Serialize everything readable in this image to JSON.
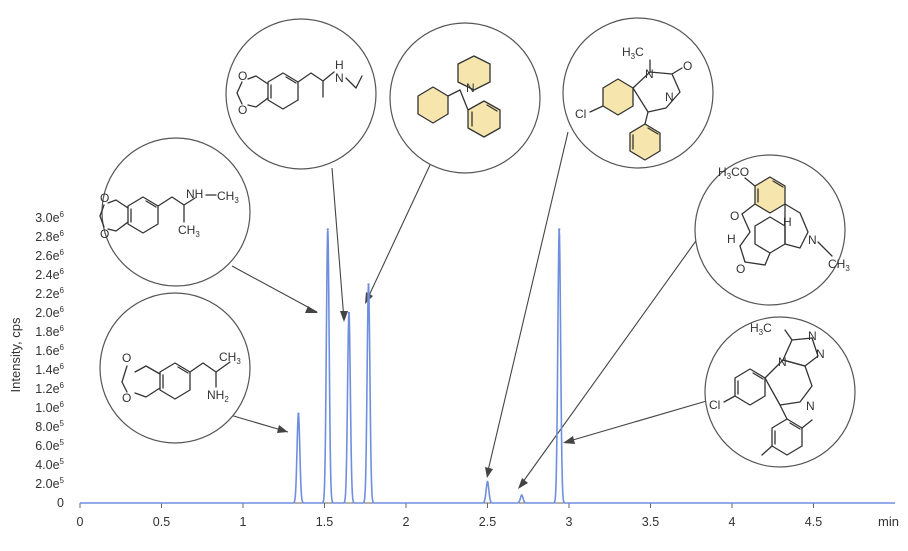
{
  "chart_data": {
    "type": "line",
    "title": "",
    "xlabel": "",
    "x_unit_label": "min",
    "ylabel": "Intensity, cps",
    "xlim": [
      0,
      5.0
    ],
    "ylim": [
      0,
      3000000
    ],
    "grid": false,
    "x_ticks": [
      "0",
      "0.5",
      "1",
      "1.5",
      "2",
      "2.5",
      "3",
      "3.5",
      "4",
      "4.5"
    ],
    "y_ticks": [
      {
        "value": 0,
        "mantissa": "0",
        "exp": ""
      },
      {
        "value": 200000,
        "mantissa": "2.0e",
        "exp": "5"
      },
      {
        "value": 400000,
        "mantissa": "4.0e",
        "exp": "5"
      },
      {
        "value": 600000,
        "mantissa": "6.0e",
        "exp": "5"
      },
      {
        "value": 800000,
        "mantissa": "8.0e",
        "exp": "5"
      },
      {
        "value": 1000000,
        "mantissa": "1.0e",
        "exp": "6"
      },
      {
        "value": 1200000,
        "mantissa": "1.2e",
        "exp": "6"
      },
      {
        "value": 1400000,
        "mantissa": "1.4e",
        "exp": "6"
      },
      {
        "value": 1600000,
        "mantissa": "1.6e",
        "exp": "6"
      },
      {
        "value": 1800000,
        "mantissa": "1.8e",
        "exp": "6"
      },
      {
        "value": 2000000,
        "mantissa": "2.0e",
        "exp": "6"
      },
      {
        "value": 2200000,
        "mantissa": "2.2e",
        "exp": "6"
      },
      {
        "value": 2400000,
        "mantissa": "2.4e",
        "exp": "6"
      },
      {
        "value": 2600000,
        "mantissa": "2.6e",
        "exp": "6"
      },
      {
        "value": 2800000,
        "mantissa": "2.8e",
        "exp": "6"
      },
      {
        "value": 3000000,
        "mantissa": "3.0e",
        "exp": "6"
      }
    ],
    "series_color": "#6f8fde",
    "peaks": [
      {
        "rt": 1.34,
        "intensity": 940000
      },
      {
        "rt": 1.52,
        "intensity": 2880000
      },
      {
        "rt": 1.65,
        "intensity": 2000000
      },
      {
        "rt": 1.77,
        "intensity": 2300000
      },
      {
        "rt": 2.5,
        "intensity": 220000
      },
      {
        "rt": 2.71,
        "intensity": 80000
      },
      {
        "rt": 2.94,
        "intensity": 2880000
      }
    ]
  },
  "structures": {
    "mda": {
      "nh2": "NH",
      "nh2_sub": "2",
      "ch3": "CH",
      "ch3_sub": "3",
      "o1": "O",
      "o2": "O"
    },
    "mdma": {
      "nh": "NH",
      "ch3": "CH",
      "ch3_sub": "3",
      "ch3b": "CH",
      "ch3b_sub": "3",
      "o1": "O",
      "o2": "O"
    },
    "mdea": {
      "n": "N",
      "h": "H",
      "o1": "O",
      "o2": "O"
    },
    "pcp": {
      "n": "N"
    },
    "diazepam": {
      "h3c": "H",
      "h3c_sub": "3",
      "h3c_c": "C",
      "n1": "N",
      "n2": "N",
      "o": "O",
      "cl": "Cl"
    },
    "hydrocodone": {
      "h3co": "H",
      "h3co_sub": "3",
      "h3co_rest": "CO",
      "o1": "O",
      "o2": "O",
      "h1": "H",
      "h2": "H",
      "n": "N",
      "ch3": "CH",
      "ch3_sub": "3"
    },
    "triazolam": {
      "h3c": "H",
      "h3c_sub": "3",
      "h3c_c": "C",
      "n1": "N",
      "n2": "N",
      "n3": "N",
      "n4": "N",
      "cl": "Cl"
    }
  }
}
